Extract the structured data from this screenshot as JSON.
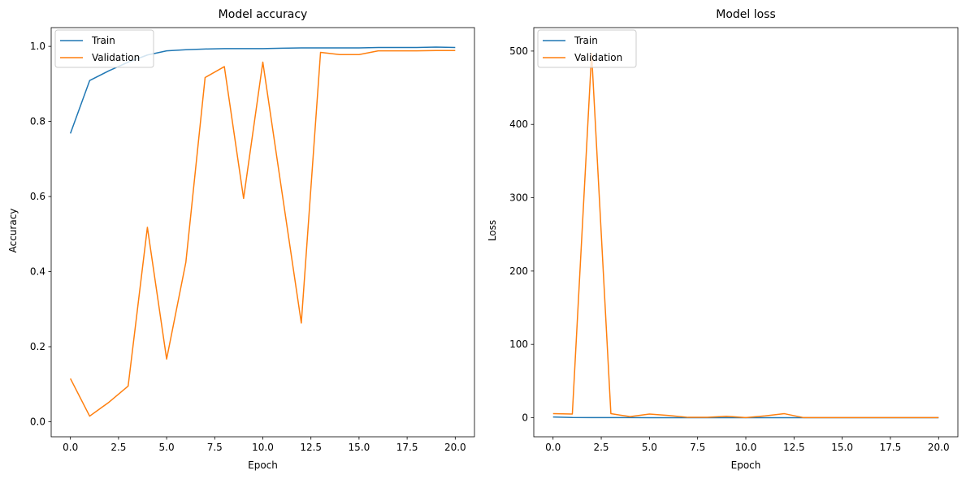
{
  "chart_data": [
    {
      "type": "line",
      "title": "Model accuracy",
      "xlabel": "Epoch",
      "ylabel": "Accuracy",
      "xlim": [
        -1.0,
        21.0
      ],
      "ylim": [
        -0.04,
        1.05
      ],
      "xticks": [
        0.0,
        2.5,
        5.0,
        7.5,
        10.0,
        12.5,
        15.0,
        17.5,
        20.0
      ],
      "xtick_labels": [
        "0.0",
        "2.5",
        "5.0",
        "7.5",
        "10.0",
        "12.5",
        "15.0",
        "17.5",
        "20.0"
      ],
      "yticks": [
        0.0,
        0.2,
        0.4,
        0.6,
        0.8,
        1.0
      ],
      "ytick_labels": [
        "0.0",
        "0.2",
        "0.4",
        "0.6",
        "0.8",
        "1.0"
      ],
      "legend_position": "upper-left",
      "grid": false,
      "x": [
        0,
        1,
        2,
        3,
        4,
        5,
        6,
        7,
        8,
        9,
        10,
        11,
        12,
        13,
        14,
        15,
        16,
        17,
        18,
        19,
        20
      ],
      "series": [
        {
          "name": "Train",
          "color": "#1f77b4",
          "values": [
            0.768,
            0.909,
            0.935,
            0.958,
            0.977,
            0.988,
            0.991,
            0.993,
            0.994,
            0.994,
            0.994,
            0.995,
            0.996,
            0.996,
            0.996,
            0.996,
            0.997,
            0.997,
            0.997,
            0.998,
            0.997
          ]
        },
        {
          "name": "Validation",
          "color": "#ff7f0e",
          "values": [
            0.115,
            0.015,
            0.052,
            0.095,
            0.518,
            0.167,
            0.425,
            0.917,
            0.946,
            0.595,
            0.958,
            0.61,
            0.263,
            0.984,
            0.978,
            0.978,
            0.988,
            0.988,
            0.988,
            0.989,
            0.989
          ]
        }
      ]
    },
    {
      "type": "line",
      "title": "Model loss",
      "xlabel": "Epoch",
      "ylabel": "Loss",
      "xlim": [
        -1.0,
        21.0
      ],
      "ylim": [
        -26.0,
        532.0
      ],
      "xticks": [
        0.0,
        2.5,
        5.0,
        7.5,
        10.0,
        12.5,
        15.0,
        17.5,
        20.0
      ],
      "xtick_labels": [
        "0.0",
        "2.5",
        "5.0",
        "7.5",
        "10.0",
        "12.5",
        "15.0",
        "17.5",
        "20.0"
      ],
      "yticks": [
        0,
        100,
        200,
        300,
        400,
        500
      ],
      "ytick_labels": [
        "0",
        "100",
        "200",
        "300",
        "400",
        "500"
      ],
      "legend_position": "upper-left",
      "grid": false,
      "x": [
        0,
        1,
        2,
        3,
        4,
        5,
        6,
        7,
        8,
        9,
        10,
        11,
        12,
        13,
        14,
        15,
        16,
        17,
        18,
        19,
        20
      ],
      "series": [
        {
          "name": "Train",
          "color": "#1f77b4",
          "values": [
            1.0,
            0.3,
            0.2,
            0.15,
            0.1,
            0.05,
            0.04,
            0.03,
            0.03,
            0.03,
            0.02,
            0.02,
            0.02,
            0.02,
            0.02,
            0.01,
            0.01,
            0.01,
            0.01,
            0.01,
            0.01
          ]
        },
        {
          "name": "Validation",
          "color": "#ff7f0e",
          "values": [
            5.5,
            5.0,
            497.0,
            5.5,
            1.5,
            5.0,
            3.0,
            0.5,
            0.5,
            2.0,
            0.2,
            2.5,
            5.5,
            0.1,
            0.1,
            0.1,
            0.1,
            0.1,
            0.1,
            0.1,
            0.1
          ]
        }
      ]
    }
  ]
}
